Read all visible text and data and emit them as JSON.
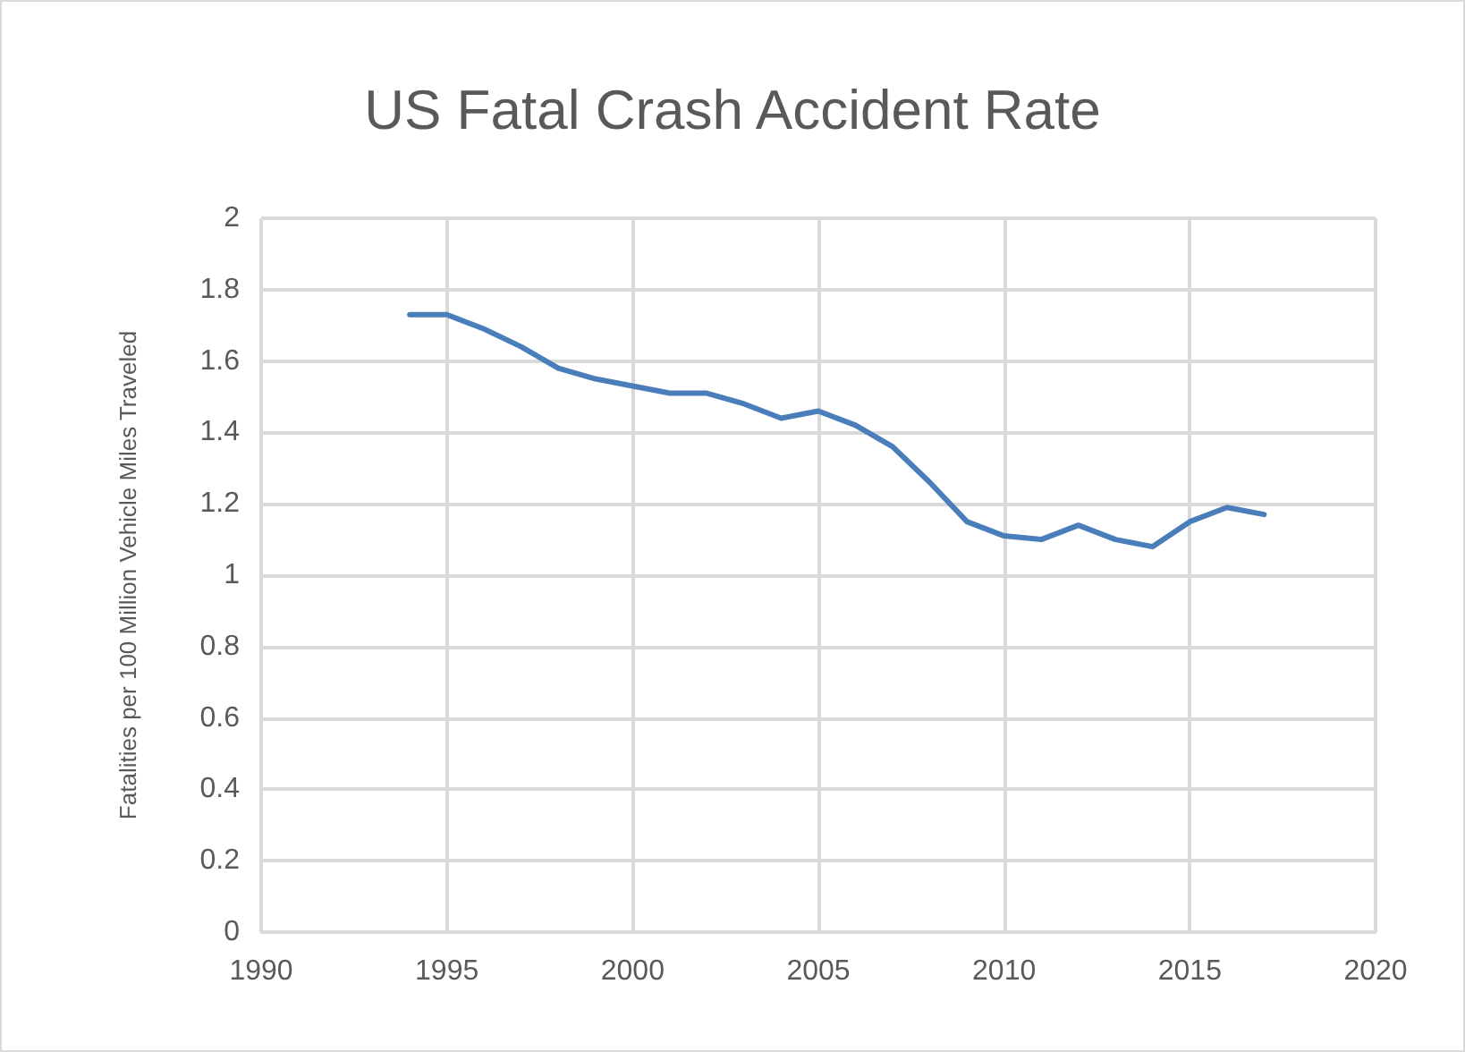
{
  "chart_data": {
    "type": "line",
    "title": "US Fatal Crash Accident Rate",
    "ylabel": "Fatalities per 100 Million Vehicle Miles Traveled",
    "x": [
      1994,
      1995,
      1996,
      1997,
      1998,
      1999,
      2000,
      2001,
      2002,
      2003,
      2004,
      2005,
      2006,
      2007,
      2008,
      2009,
      2010,
      2011,
      2012,
      2013,
      2014,
      2015,
      2016,
      2017
    ],
    "series": [
      {
        "color": "#4a7ebb",
        "values": [
          1.73,
          1.73,
          1.69,
          1.64,
          1.58,
          1.55,
          1.53,
          1.51,
          1.51,
          1.48,
          1.44,
          1.46,
          1.42,
          1.36,
          1.26,
          1.15,
          1.11,
          1.1,
          1.14,
          1.1,
          1.08,
          1.15,
          1.19,
          1.17
        ]
      }
    ],
    "xlim": [
      1990,
      2020
    ],
    "xticks": [
      1990,
      1995,
      2000,
      2005,
      2010,
      2015,
      2020
    ],
    "ylim": [
      0,
      2
    ],
    "yticks": [
      0,
      0.2,
      0.4,
      0.6,
      0.8,
      1,
      1.2,
      1.4,
      1.6,
      1.8,
      2
    ],
    "grid": true,
    "marker": "none",
    "line_style": "solid"
  }
}
